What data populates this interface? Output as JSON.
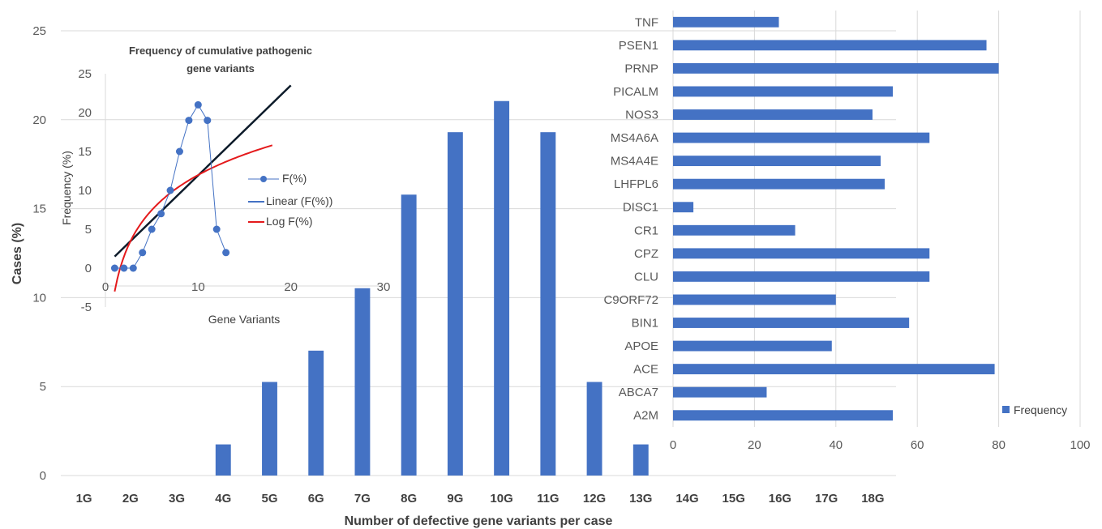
{
  "colors": {
    "bar": "#4472C4",
    "grid": "#d9d9d9",
    "point": "#4472C4",
    "linear_trend": "#0d1b2a",
    "log_trend": "#e41a1c"
  },
  "chart_data": [
    {
      "type": "bar",
      "xlabel": "Number of defective gene variants per case",
      "ylabel": "Cases (%)",
      "categories": [
        "1G",
        "2G",
        "3G",
        "4G",
        "5G",
        "6G",
        "7G",
        "8G",
        "9G",
        "10G",
        "11G",
        "12G",
        "13G",
        "14G",
        "15G",
        "16G",
        "17G",
        "18G"
      ],
      "values": [
        0,
        0,
        0,
        1.75,
        5.26,
        7.02,
        10.53,
        15.79,
        19.3,
        21.05,
        19.3,
        5.26,
        1.75,
        0,
        0,
        0,
        0,
        0
      ],
      "ylim": [
        0,
        25
      ],
      "yticks": [
        0,
        5,
        10,
        15,
        20,
        25
      ],
      "grid": true
    },
    {
      "type": "scatter",
      "title_line1": "Frequency of cumulative pathogenic",
      "title_line2": "gene variants",
      "xlabel": "Gene Variants",
      "ylabel": "Frequency (%)",
      "xlim": [
        0,
        30
      ],
      "ylim": [
        -5,
        25
      ],
      "xticks": [
        0,
        10,
        20,
        30
      ],
      "yticks": [
        -5,
        0,
        5,
        10,
        15,
        20,
        25
      ],
      "series": [
        {
          "name": "F(%)",
          "x": [
            1,
            2,
            3,
            4,
            5,
            6,
            7,
            8,
            9,
            10,
            11,
            12,
            13
          ],
          "y": [
            0,
            0,
            0,
            2,
            5,
            7,
            10,
            15,
            19,
            21,
            19,
            5,
            2
          ]
        },
        {
          "name": "Linear (F(%))",
          "x": [
            1,
            20
          ],
          "y": [
            1.5,
            23.5
          ]
        },
        {
          "name": "Log F(%)",
          "x": [
            1,
            18
          ],
          "y": [
            -3,
            15.8
          ]
        }
      ],
      "legend_position": "right"
    },
    {
      "type": "bar",
      "orientation": "horizontal",
      "categories": [
        "TNF",
        "PSEN1",
        "PRNP",
        "PICALM",
        "NOS3",
        "MS4A6A",
        "MS4A4E",
        "LHFPL6",
        "DISC1",
        "CR1",
        "CPZ",
        "CLU",
        "C9ORF72",
        "BIN1",
        "APOE",
        "ACE",
        "ABCA7",
        "A2M"
      ],
      "series": [
        {
          "name": "Frequency",
          "values": [
            26,
            77,
            80,
            54,
            49,
            63,
            51,
            52,
            5,
            30,
            63,
            63,
            40,
            58,
            39,
            79,
            23,
            54
          ]
        }
      ],
      "xlim": [
        0,
        100
      ],
      "xticks": [
        0,
        20,
        40,
        60,
        80,
        100
      ],
      "grid": true,
      "legend_position": "right"
    }
  ]
}
